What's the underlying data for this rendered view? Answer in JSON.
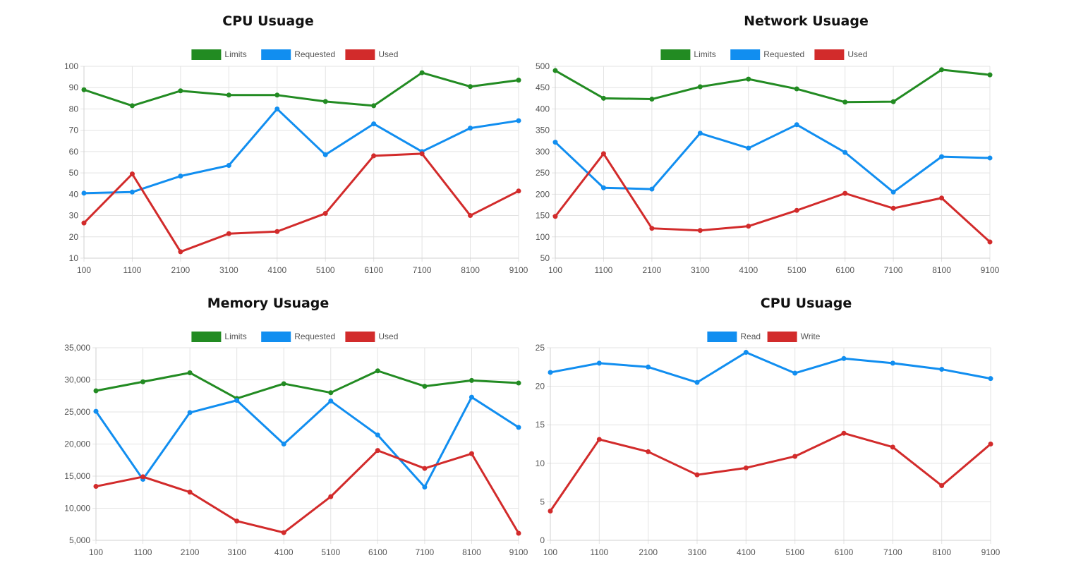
{
  "chart_data": [
    {
      "type": "line",
      "title": "CPU Usuage",
      "x": [
        "100",
        "1100",
        "2100",
        "3100",
        "4100",
        "5100",
        "6100",
        "7100",
        "8100",
        "9100"
      ],
      "ylim": [
        10,
        100
      ],
      "yticks": [
        10,
        20,
        30,
        40,
        50,
        60,
        70,
        80,
        90,
        100
      ],
      "grid": true,
      "legend_position": "top",
      "series": [
        {
          "name": "Limits",
          "color": "#228B22",
          "values": [
            89,
            81.5,
            88.5,
            86.5,
            86.5,
            83.5,
            81.5,
            97,
            90.5,
            93.5
          ]
        },
        {
          "name": "Requested",
          "color": "#118EF0",
          "values": [
            40.5,
            41,
            48.5,
            53.5,
            80,
            58.5,
            73,
            60,
            71,
            74.5
          ]
        },
        {
          "name": "Used",
          "color": "#D22B2B",
          "values": [
            26.5,
            49.5,
            13,
            21.5,
            22.5,
            31,
            58,
            59,
            30,
            41.5
          ]
        }
      ]
    },
    {
      "type": "line",
      "title": "Network Usuage",
      "x": [
        "100",
        "1100",
        "2100",
        "3100",
        "4100",
        "5100",
        "6100",
        "7100",
        "8100",
        "9100"
      ],
      "ylim": [
        50,
        500
      ],
      "yticks": [
        50,
        100,
        150,
        200,
        250,
        300,
        350,
        400,
        450,
        500
      ],
      "grid": true,
      "legend_position": "top",
      "series": [
        {
          "name": "Limits",
          "color": "#228B22",
          "values": [
            490,
            425,
            423,
            452,
            470,
            447,
            416,
            417,
            492,
            480
          ]
        },
        {
          "name": "Requested",
          "color": "#118EF0",
          "values": [
            322,
            215,
            212,
            343,
            308,
            363,
            298,
            205,
            288,
            285
          ]
        },
        {
          "name": "Used",
          "color": "#D22B2B",
          "values": [
            148,
            295,
            120,
            115,
            125,
            162,
            202,
            167,
            191,
            88
          ]
        }
      ]
    },
    {
      "type": "line",
      "title": "Memory Usuage",
      "x": [
        "100",
        "1100",
        "2100",
        "3100",
        "4100",
        "5100",
        "6100",
        "7100",
        "8100",
        "9100"
      ],
      "ylim": [
        5000,
        35000
      ],
      "yticks": [
        5000,
        10000,
        15000,
        20000,
        25000,
        30000,
        35000
      ],
      "ytick_labels": [
        "5,000",
        "10,000",
        "15,000",
        "20,000",
        "25,000",
        "30,000",
        "35,000"
      ],
      "grid": true,
      "legend_position": "top",
      "series": [
        {
          "name": "Limits",
          "color": "#228B22",
          "values": [
            28300,
            29700,
            31100,
            27100,
            29400,
            28000,
            31400,
            29000,
            29900,
            29500
          ]
        },
        {
          "name": "Requested",
          "color": "#118EF0",
          "values": [
            25100,
            14500,
            24900,
            26800,
            20000,
            26700,
            21400,
            13300,
            27300,
            22600
          ]
        },
        {
          "name": "Used",
          "color": "#D22B2B",
          "values": [
            13400,
            14900,
            12500,
            8000,
            6200,
            11800,
            19000,
            16200,
            18500,
            6100
          ]
        }
      ]
    },
    {
      "type": "line",
      "title": "CPU Usuage",
      "x": [
        "100",
        "1100",
        "2100",
        "3100",
        "4100",
        "5100",
        "6100",
        "7100",
        "8100",
        "9100"
      ],
      "ylim": [
        0,
        25
      ],
      "yticks": [
        0,
        5,
        10,
        15,
        20,
        25
      ],
      "grid": true,
      "legend_position": "top",
      "series": [
        {
          "name": "Read",
          "color": "#118EF0",
          "values": [
            21.8,
            23,
            22.5,
            20.5,
            24.4,
            21.7,
            23.6,
            23,
            22.2,
            21
          ]
        },
        {
          "name": "Write",
          "color": "#D22B2B",
          "values": [
            3.8,
            13.1,
            11.5,
            8.5,
            9.4,
            10.9,
            13.9,
            12.1,
            7.1,
            12.5
          ]
        }
      ]
    }
  ]
}
